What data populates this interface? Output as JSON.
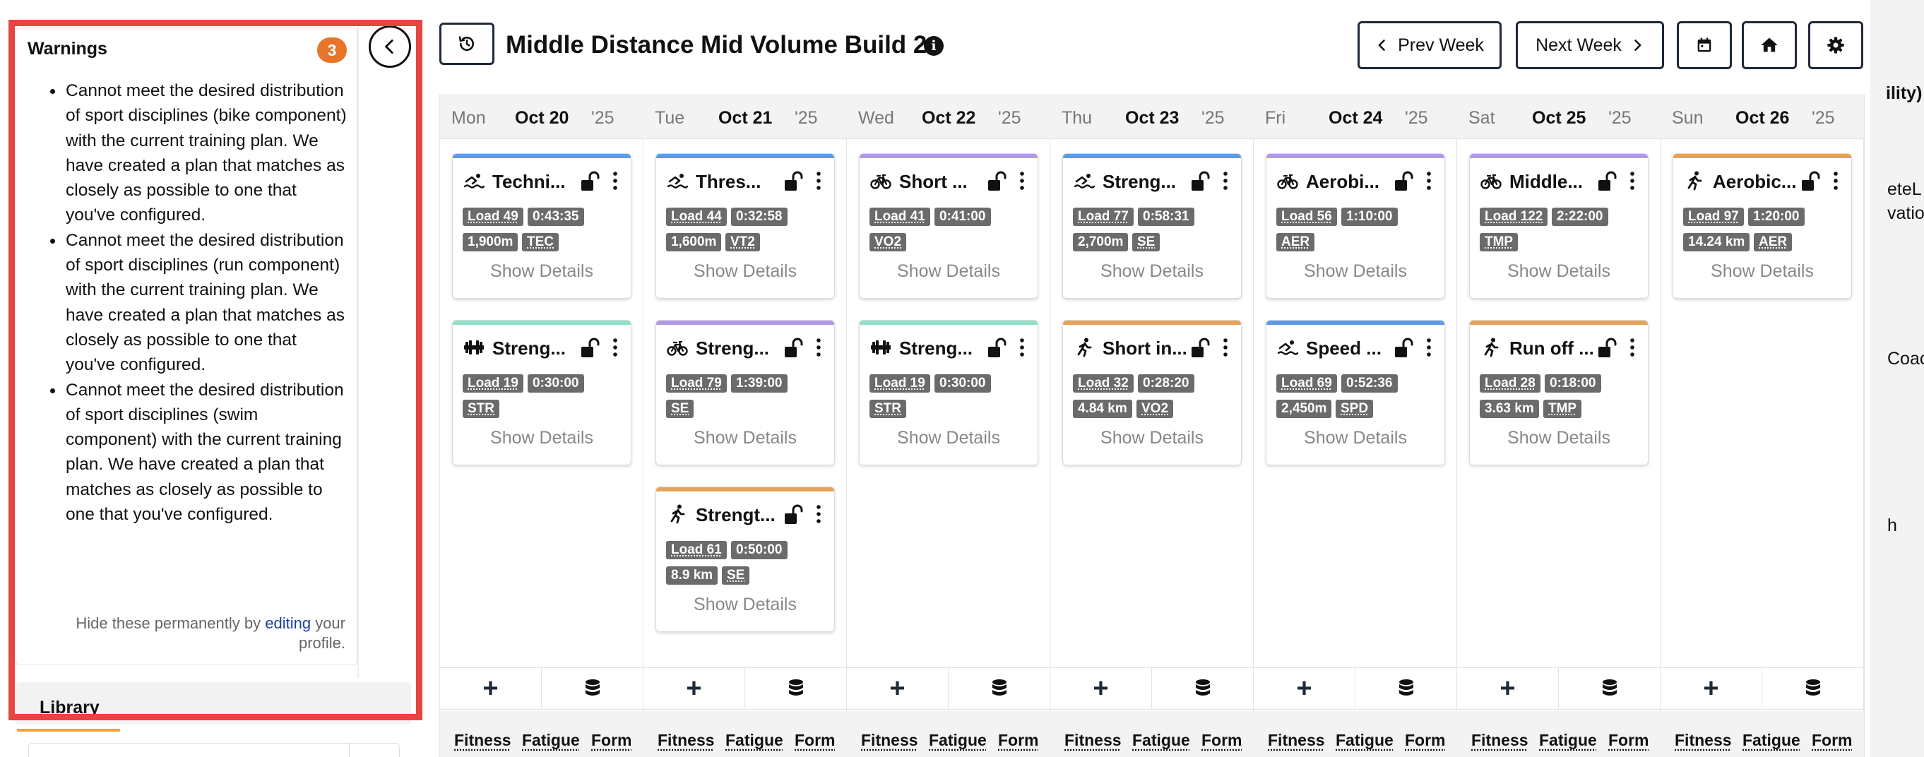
{
  "warnings": {
    "title": "Warnings",
    "count": "3",
    "items": [
      "Cannot meet the desired distribution of sport disciplines (bike component) with the current training plan. We have created a plan that matches as closely as possible to one that you've configured.",
      "Cannot meet the desired distribution of sport disciplines (run component) with the current training plan. We have created a plan that matches as closely as possible to one that you've configured.",
      "Cannot meet the desired distribution of sport disciplines (swim component) with the current training plan. We have created a plan that matches as closely as possible to one that you've configured."
    ],
    "hide_prefix": "Hide these permanently by ",
    "hide_link": "editing",
    "hide_suffix": " your profile."
  },
  "library": {
    "label": "Library"
  },
  "header": {
    "title": "Middle Distance Mid Volume Build 2",
    "prev_week": "Prev Week",
    "next_week": "Next Week"
  },
  "calendar": {
    "days": [
      {
        "dow": "Mon",
        "date": "Oct 20",
        "year": "'25",
        "workouts": [
          {
            "sport": "swim",
            "color": "#5b9be8",
            "title": "Techni...",
            "load": "Load 49",
            "duration": "0:43:35",
            "distance": "1,900m",
            "zone": "TEC",
            "details": "Show Details"
          },
          {
            "sport": "strength",
            "color": "#8fe0c8",
            "title": "Streng...",
            "load": "Load 19",
            "duration": "0:30:00",
            "distance": "",
            "zone": "STR",
            "details": "Show Details"
          }
        ],
        "metrics": [
          "Fitness",
          "Fatigue",
          "Form"
        ]
      },
      {
        "dow": "Tue",
        "date": "Oct 21",
        "year": "'25",
        "workouts": [
          {
            "sport": "swim",
            "color": "#5b9be8",
            "title": "Thres...",
            "load": "Load 44",
            "duration": "0:32:58",
            "distance": "1,600m",
            "zone": "VT2",
            "details": "Show Details"
          },
          {
            "sport": "bike",
            "color": "#b497e8",
            "title": "Streng...",
            "load": "Load 79",
            "duration": "1:39:00",
            "distance": "",
            "zone": "SE",
            "details": "Show Details"
          },
          {
            "sport": "run",
            "color": "#e6a259",
            "title": "Strengt...",
            "load": "Load 61",
            "duration": "0:50:00",
            "distance": "8.9 km",
            "zone": "SE",
            "details": "Show Details"
          }
        ],
        "metrics": [
          "Fitness",
          "Fatigue",
          "Form"
        ]
      },
      {
        "dow": "Wed",
        "date": "Oct 22",
        "year": "'25",
        "workouts": [
          {
            "sport": "bike",
            "color": "#b497e8",
            "title": "Short ...",
            "load": "Load 41",
            "duration": "0:41:00",
            "distance": "",
            "zone": "VO2",
            "details": "Show Details"
          },
          {
            "sport": "strength",
            "color": "#8fe0c8",
            "title": "Streng...",
            "load": "Load 19",
            "duration": "0:30:00",
            "distance": "",
            "zone": "STR",
            "details": "Show Details"
          }
        ],
        "metrics": [
          "Fitness",
          "Fatigue",
          "Form"
        ]
      },
      {
        "dow": "Thu",
        "date": "Oct 23",
        "year": "'25",
        "workouts": [
          {
            "sport": "swim",
            "color": "#5b9be8",
            "title": "Streng...",
            "load": "Load 77",
            "duration": "0:58:31",
            "distance": "2,700m",
            "zone": "SE",
            "details": "Show Details"
          },
          {
            "sport": "run",
            "color": "#e6a259",
            "title": "Short in...",
            "load": "Load 32",
            "duration": "0:28:20",
            "distance": "4.84 km",
            "zone": "VO2",
            "details": "Show Details"
          }
        ],
        "metrics": [
          "Fitness",
          "Fatigue",
          "Form"
        ]
      },
      {
        "dow": "Fri",
        "date": "Oct 24",
        "year": "'25",
        "workouts": [
          {
            "sport": "bike",
            "color": "#b497e8",
            "title": "Aerobi...",
            "load": "Load 56",
            "duration": "1:10:00",
            "distance": "",
            "zone": "AER",
            "details": "Show Details"
          },
          {
            "sport": "swim",
            "color": "#5b9be8",
            "title": "Speed ...",
            "load": "Load 69",
            "duration": "0:52:36",
            "distance": "2,450m",
            "zone": "SPD",
            "details": "Show Details"
          }
        ],
        "metrics": [
          "Fitness",
          "Fatigue",
          "Form"
        ]
      },
      {
        "dow": "Sat",
        "date": "Oct 25",
        "year": "'25",
        "workouts": [
          {
            "sport": "bike",
            "color": "#b497e8",
            "title": "Middle...",
            "load": "Load 122",
            "duration": "2:22:00",
            "distance": "",
            "zone": "TMP",
            "details": "Show Details"
          },
          {
            "sport": "run",
            "color": "#e6a259",
            "title": "Run off ...",
            "load": "Load 28",
            "duration": "0:18:00",
            "distance": "3.63 km",
            "zone": "TMP",
            "details": "Show Details"
          }
        ],
        "metrics": [
          "Fitness",
          "Fatigue",
          "Form"
        ]
      },
      {
        "dow": "Sun",
        "date": "Oct 26",
        "year": "'25",
        "workouts": [
          {
            "sport": "run",
            "color": "#e6a259",
            "title": "Aerobic...",
            "load": "Load 97",
            "duration": "1:20:00",
            "distance": "14.24 km",
            "zone": "AER",
            "details": "Show Details"
          }
        ],
        "metrics": [
          "Fitness",
          "Fatigue",
          "Form"
        ]
      }
    ]
  },
  "right_fragments": [
    "ility)",
    "eteL",
    "vatio",
    "Coac",
    "h"
  ]
}
